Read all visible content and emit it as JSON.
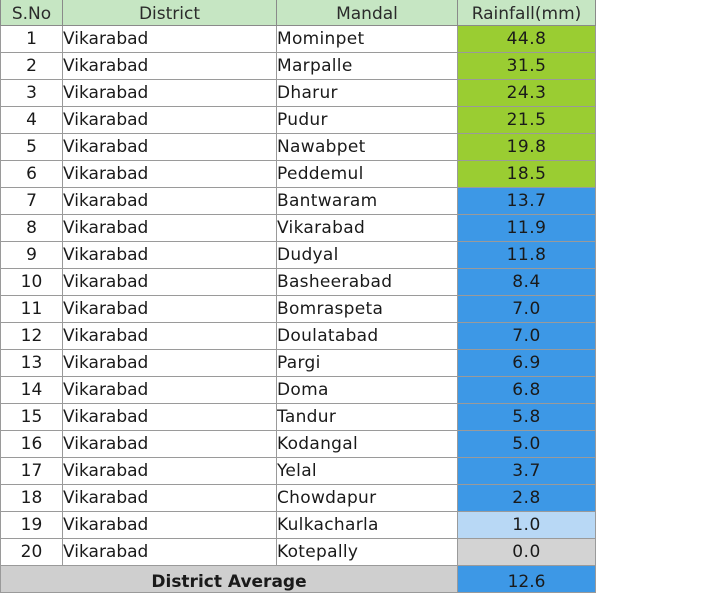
{
  "table": {
    "headers": [
      "S.No",
      "District",
      "Mandal",
      "Rainfall(mm)"
    ],
    "rows": [
      {
        "sno": "1",
        "district": "Vikarabad",
        "mandal": "Mominpet",
        "rainfall": "44.8",
        "level": "green"
      },
      {
        "sno": "2",
        "district": "Vikarabad",
        "mandal": "Marpalle",
        "rainfall": "31.5",
        "level": "green"
      },
      {
        "sno": "3",
        "district": "Vikarabad",
        "mandal": "Dharur",
        "rainfall": "24.3",
        "level": "green"
      },
      {
        "sno": "4",
        "district": "Vikarabad",
        "mandal": "Pudur",
        "rainfall": "21.5",
        "level": "green"
      },
      {
        "sno": "5",
        "district": "Vikarabad",
        "mandal": "Nawabpet",
        "rainfall": "19.8",
        "level": "green"
      },
      {
        "sno": "6",
        "district": "Vikarabad",
        "mandal": "Peddemul",
        "rainfall": "18.5",
        "level": "green"
      },
      {
        "sno": "7",
        "district": "Vikarabad",
        "mandal": "Bantwaram",
        "rainfall": "13.7",
        "level": "blue"
      },
      {
        "sno": "8",
        "district": "Vikarabad",
        "mandal": "Vikarabad",
        "rainfall": "11.9",
        "level": "blue"
      },
      {
        "sno": "9",
        "district": "Vikarabad",
        "mandal": "Dudyal",
        "rainfall": "11.8",
        "level": "blue"
      },
      {
        "sno": "10",
        "district": "Vikarabad",
        "mandal": "Basheerabad",
        "rainfall": "8.4",
        "level": "blue"
      },
      {
        "sno": "11",
        "district": "Vikarabad",
        "mandal": "Bomraspeta",
        "rainfall": "7.0",
        "level": "blue"
      },
      {
        "sno": "12",
        "district": "Vikarabad",
        "mandal": "Doulatabad",
        "rainfall": "7.0",
        "level": "blue"
      },
      {
        "sno": "13",
        "district": "Vikarabad",
        "mandal": "Pargi",
        "rainfall": "6.9",
        "level": "blue"
      },
      {
        "sno": "14",
        "district": "Vikarabad",
        "mandal": "Doma",
        "rainfall": "6.8",
        "level": "blue"
      },
      {
        "sno": "15",
        "district": "Vikarabad",
        "mandal": "Tandur",
        "rainfall": "5.8",
        "level": "blue"
      },
      {
        "sno": "16",
        "district": "Vikarabad",
        "mandal": "Kodangal",
        "rainfall": "5.0",
        "level": "blue"
      },
      {
        "sno": "17",
        "district": "Vikarabad",
        "mandal": "Yelal",
        "rainfall": "3.7",
        "level": "blue"
      },
      {
        "sno": "18",
        "district": "Vikarabad",
        "mandal": "Chowdapur",
        "rainfall": "2.8",
        "level": "blue"
      },
      {
        "sno": "19",
        "district": "Vikarabad",
        "mandal": "Kulkacharla",
        "rainfall": "1.0",
        "level": "light"
      },
      {
        "sno": "20",
        "district": "Vikarabad",
        "mandal": "Kotepally",
        "rainfall": "0.0",
        "level": "gray"
      }
    ],
    "footer": {
      "label": "District Average",
      "value": "12.6"
    }
  },
  "colors": {
    "header_bg": "#c6e6c3",
    "green": "#9acd32",
    "blue": "#3d98e6",
    "light": "#b8d8f5",
    "gray": "#d3d3d3"
  }
}
